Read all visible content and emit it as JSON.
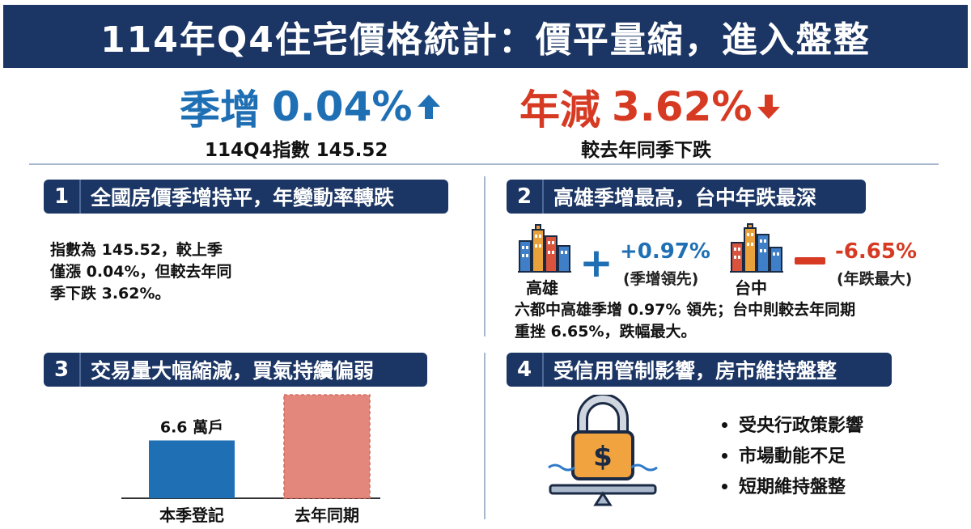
{
  "title": "114年Q4住宅價格統計：價平量縮，進入盤整",
  "kpis": {
    "qoq_label": "季增",
    "qoq_value": "0.04%",
    "qoq_color": "#1f6fb5",
    "qoq_arrow": "arrow-up-icon",
    "qoq_sub": "114Q4指數 145.52",
    "yoy_label": "年減",
    "yoy_value": "3.62%",
    "yoy_color": "#d63a23",
    "yoy_arrow": "arrow-down-icon",
    "yoy_sub": "較去年同季下跌"
  },
  "sections": [
    {
      "num": "1",
      "heading": "全國房價季增持平，年變動率轉跌",
      "lines": [
        "指數為 145.52，較上季",
        "僅漲 0.04%，但較去年同",
        "季下跌 3.62%。"
      ]
    },
    {
      "num": "2",
      "heading": "高雄季增最高，台中年跌最深",
      "cities": [
        {
          "name": "高雄",
          "icon": "city-buildings-icon",
          "sign_icon": "plus-icon",
          "value": "+0.97%",
          "note": "(季增領先)",
          "color": "#1f6fb5"
        },
        {
          "name": "台中",
          "icon": "city-buildings-icon",
          "sign_icon": "minus-icon",
          "value": "-6.65%",
          "note": "(年跌最大)",
          "color": "#d63a23"
        }
      ],
      "lines": [
        "六都中高雄季增 0.97% 領先；台中則較去年同期",
        "重挫 6.65%，跌幅最大。"
      ]
    },
    {
      "num": "3",
      "heading": "交易量大幅縮減，買氣持續偏弱"
    },
    {
      "num": "4",
      "heading": "受信用管制影響，房市維持盤整",
      "icon": "padlock-balance-icon",
      "bullets": [
        "受央行政策影響",
        "市場動能不足",
        "短期維持盤整"
      ]
    }
  ],
  "chart_data": {
    "type": "bar",
    "categories": [
      "本季登記",
      "去年同期"
    ],
    "values": [
      6.6,
      11.8
    ],
    "data_labels": [
      "6.6 萬戶",
      ""
    ],
    "colors": [
      "#1f6fb5",
      "#e3877d"
    ],
    "bar_styles": [
      "solid",
      "dashed-outline"
    ],
    "ylim": [
      0,
      12
    ],
    "grid": false
  }
}
